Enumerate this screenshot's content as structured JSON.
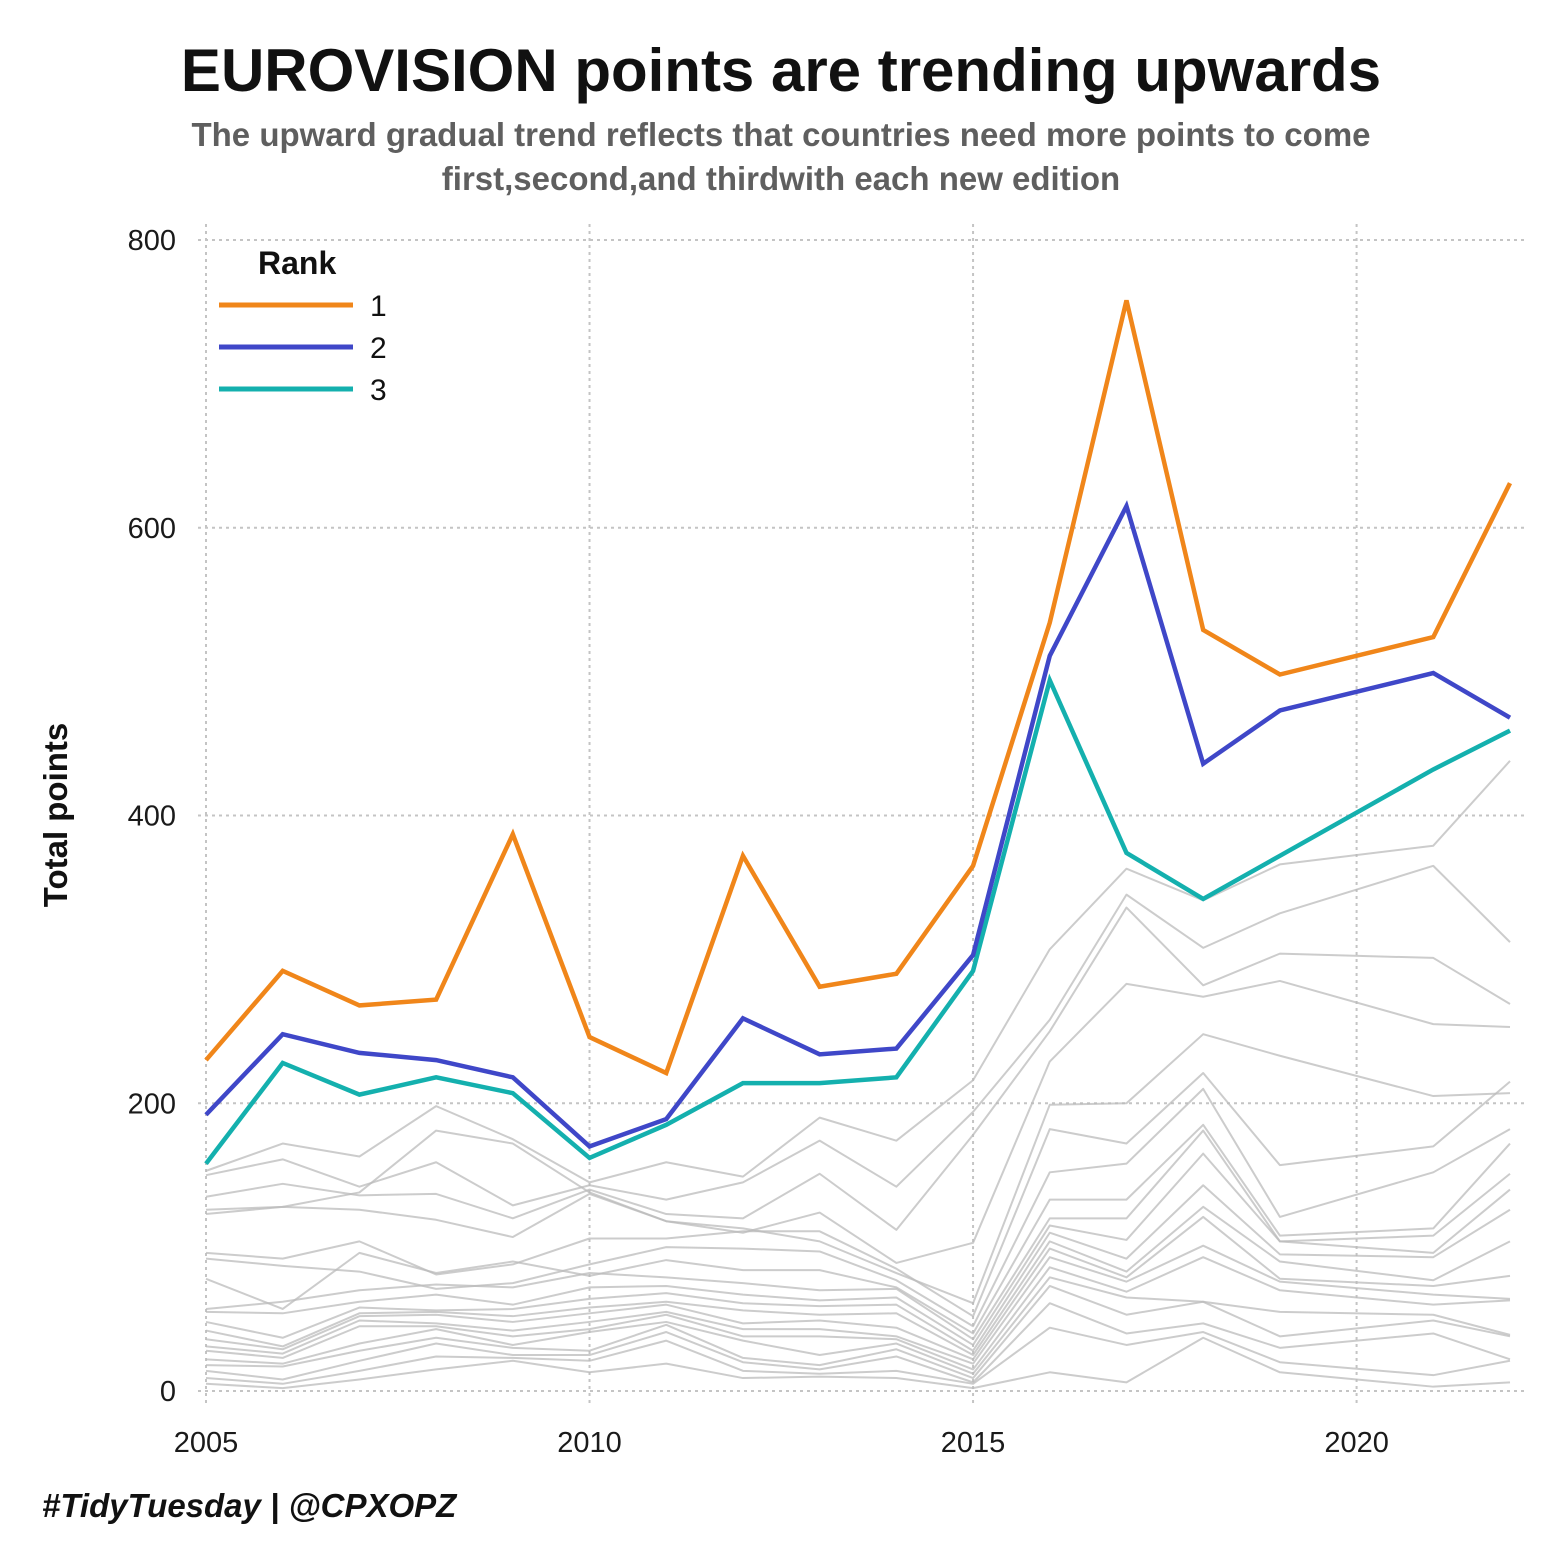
{
  "title": "EUROVISION points are trending upwards",
  "subtitle": "The upward gradual trend reflects that countries need more points to come first,second,and thirdwith each new edition",
  "caption": "#TidyTuesday | @CPXOPZ",
  "chart_data": {
    "type": "line",
    "ylabel": "Total points",
    "xlabel": "",
    "xlim": [
      2005,
      2022
    ],
    "ylim": [
      0,
      800
    ],
    "x_ticks": [
      2005,
      2010,
      2015,
      2020
    ],
    "y_ticks": [
      0,
      200,
      400,
      600,
      800
    ],
    "grid": true,
    "legend": {
      "title": "Rank",
      "position": "top-left"
    },
    "series": [
      {
        "name": "1",
        "color": "#F0861A",
        "x": [
          2005,
          2006,
          2007,
          2008,
          2009,
          2010,
          2011,
          2012,
          2013,
          2014,
          2015,
          2016,
          2017,
          2018,
          2019,
          2021,
          2022
        ],
        "y": [
          230,
          292,
          268,
          272,
          387,
          246,
          221,
          372,
          281,
          290,
          365,
          534,
          758,
          529,
          498,
          524,
          631
        ]
      },
      {
        "name": "2",
        "color": "#3F47C8",
        "x": [
          2005,
          2006,
          2007,
          2008,
          2009,
          2010,
          2011,
          2012,
          2013,
          2014,
          2015,
          2016,
          2017,
          2018,
          2019,
          2021,
          2022
        ],
        "y": [
          192,
          248,
          235,
          230,
          218,
          170,
          189,
          259,
          234,
          238,
          303,
          511,
          615,
          436,
          473,
          499,
          468
        ]
      },
      {
        "name": "3",
        "color": "#14B0AE",
        "x": [
          2005,
          2006,
          2007,
          2008,
          2009,
          2010,
          2011,
          2012,
          2013,
          2014,
          2015,
          2016,
          2017,
          2018,
          2019,
          2021,
          2022
        ],
        "y": [
          158,
          228,
          206,
          218,
          207,
          162,
          185,
          214,
          214,
          218,
          292,
          494,
          374,
          342,
          372,
          432,
          459
        ]
      }
    ],
    "background_series": {
      "color": "#bbbbbb",
      "x": [
        2005,
        2006,
        2007,
        2008,
        2009,
        2010,
        2011,
        2012,
        2013,
        2014,
        2015,
        2016,
        2017,
        2018,
        2019,
        2021,
        2022
      ],
      "lines": [
        [
          153,
          172,
          163,
          198,
          175,
          145,
          159,
          149,
          190,
          174,
          216,
          307,
          363,
          341,
          366,
          379,
          438
        ],
        [
          150,
          161,
          142,
          159,
          129,
          143,
          133,
          145,
          174,
          142,
          194,
          258,
          345,
          308,
          332,
          365,
          312
        ],
        [
          135,
          144,
          136,
          137,
          120,
          140,
          123,
          120,
          151,
          112,
          178,
          250,
          336,
          282,
          304,
          301,
          269
        ],
        [
          123,
          128,
          126,
          119,
          107,
          137,
          118,
          110,
          124,
          89,
          103,
          229,
          283,
          274,
          285,
          255,
          253
        ],
        [
          126,
          128,
          138,
          181,
          172,
          138,
          118,
          113,
          104,
          82,
          61,
          199,
          200,
          248,
          233,
          205,
          207
        ],
        [
          96,
          92,
          104,
          81,
          88,
          106,
          106,
          111,
          111,
          85,
          52,
          182,
          172,
          221,
          157,
          170,
          215
        ],
        [
          92,
          87,
          83,
          71,
          75,
          88,
          100,
          99,
          97,
          77,
          45,
          152,
          158,
          210,
          121,
          152,
          182
        ],
        [
          78,
          57,
          96,
          82,
          90,
          80,
          91,
          84,
          84,
          72,
          40,
          133,
          133,
          185,
          108,
          113,
          172
        ],
        [
          57,
          62,
          70,
          74,
          72,
          82,
          79,
          75,
          70,
          71,
          36,
          120,
          120,
          181,
          104,
          108,
          151
        ],
        [
          55,
          54,
          62,
          67,
          60,
          72,
          73,
          67,
          63,
          65,
          32,
          115,
          105,
          165,
          104,
          96,
          140
        ],
        [
          48,
          37,
          58,
          56,
          57,
          64,
          68,
          61,
          59,
          60,
          28,
          110,
          92,
          143,
          95,
          93,
          126
        ],
        [
          42,
          31,
          54,
          55,
          52,
          58,
          62,
          56,
          53,
          54,
          25,
          104,
          83,
          128,
          90,
          77,
          104
        ],
        [
          36,
          29,
          52,
          53,
          48,
          54,
          60,
          47,
          49,
          44,
          22,
          99,
          79,
          121,
          78,
          73,
          80
        ],
        [
          31,
          26,
          49,
          47,
          42,
          48,
          55,
          43,
          43,
          38,
          19,
          93,
          76,
          101,
          76,
          67,
          64
        ],
        [
          28,
          23,
          45,
          45,
          38,
          43,
          53,
          38,
          38,
          36,
          15,
          86,
          69,
          93,
          70,
          60,
          63
        ],
        [
          22,
          19,
          33,
          43,
          32,
          41,
          48,
          35,
          25,
          33,
          12,
          79,
          65,
          62,
          55,
          53,
          39
        ],
        [
          18,
          17,
          28,
          37,
          30,
          28,
          46,
          23,
          18,
          29,
          9,
          73,
          53,
          62,
          38,
          49,
          38
        ],
        [
          14,
          8,
          21,
          33,
          25,
          25,
          41,
          20,
          15,
          24,
          6,
          61,
          40,
          47,
          30,
          40,
          22
        ],
        [
          9,
          5,
          14,
          24,
          23,
          21,
          35,
          14,
          12,
          14,
          5,
          44,
          32,
          41,
          20,
          11,
          21
        ],
        [
          5,
          2,
          8,
          15,
          21,
          13,
          19,
          9,
          10,
          9,
          2,
          13,
          6,
          37,
          13,
          3,
          6
        ]
      ]
    }
  }
}
